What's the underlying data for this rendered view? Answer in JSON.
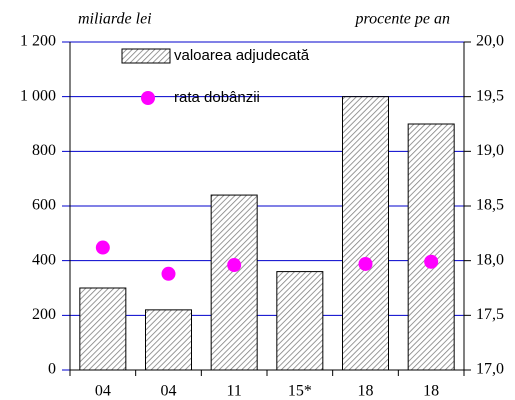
{
  "chart_data": {
    "type": "bar",
    "ylabel": "miliarde lei",
    "y2label": "procente pe an",
    "categories": [
      "04",
      "04",
      "11",
      "15*",
      "18",
      "18"
    ],
    "series": [
      {
        "name": "valoarea adjudecată",
        "color": "#808080",
        "values": [
          300,
          220,
          640,
          360,
          1000,
          900
        ]
      },
      {
        "name": "rata dobânzii",
        "color": "#ff00ff",
        "axis": "y2",
        "type": "scatter",
        "values": [
          18.12,
          17.88,
          17.96,
          null,
          17.97,
          17.99
        ]
      }
    ],
    "ylim": [
      0,
      1200
    ],
    "yticks": [
      0,
      200,
      400,
      600,
      800,
      {
        "value": 1000,
        "label": "1 000"
      },
      {
        "value": 1200,
        "label": "1 200"
      }
    ],
    "y2lim": [
      17.0,
      20.0
    ],
    "y2ticks": [
      {
        "value": 17.0,
        "label": "17,0"
      },
      {
        "value": 17.5,
        "label": "17,5"
      },
      {
        "value": 18.0,
        "label": "18,0"
      },
      {
        "value": 18.5,
        "label": "18,5"
      },
      {
        "value": 19.0,
        "label": "19,0"
      },
      {
        "value": 19.5,
        "label": "19,5"
      },
      {
        "value": 20.0,
        "label": "20,0"
      }
    ],
    "grid": true
  }
}
